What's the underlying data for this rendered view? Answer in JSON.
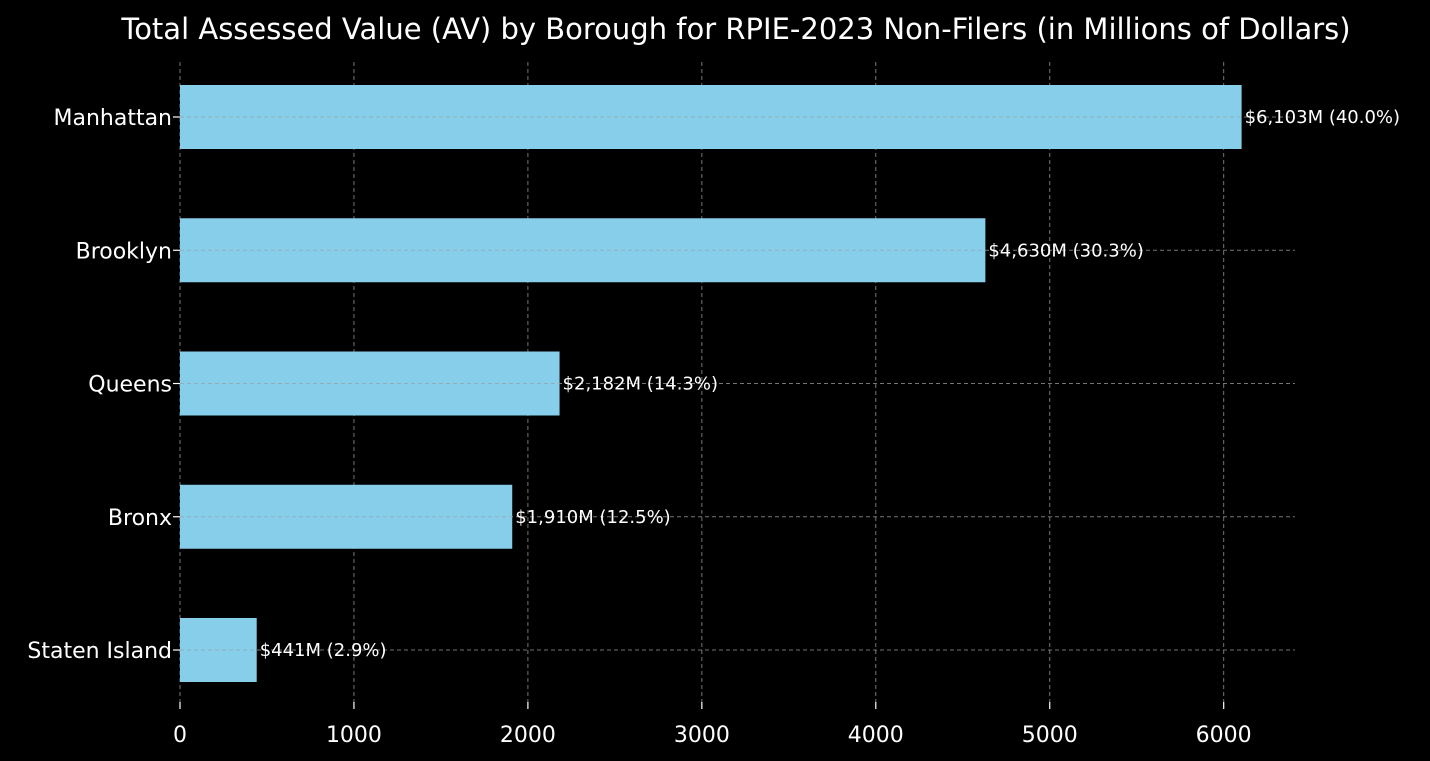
{
  "chart_data": {
    "type": "bar",
    "orientation": "horizontal",
    "title": "Total Assessed Value (AV) by Borough for RPIE-2023 Non-Filers (in Millions of Dollars)",
    "xlabel": "",
    "ylabel": "",
    "categories": [
      "Manhattan",
      "Brooklyn",
      "Queens",
      "Bronx",
      "Staten Island"
    ],
    "values": [
      6103,
      4630,
      2182,
      1910,
      441
    ],
    "data_labels": [
      "$6,103M (40.0%)",
      "$4,630M (30.3%)",
      "$2,182M (14.3%)",
      "$1,910M (12.5%)",
      "$441M (2.9%)"
    ],
    "x_ticks": [
      0,
      1000,
      2000,
      3000,
      4000,
      5000,
      6000
    ],
    "xlim": [
      0,
      6410
    ],
    "grid": true,
    "legend": "none",
    "colors": {
      "background": "#000000",
      "bar": "#87ceeb",
      "text": "#ffffff",
      "grid": "#8a8a8a"
    }
  }
}
